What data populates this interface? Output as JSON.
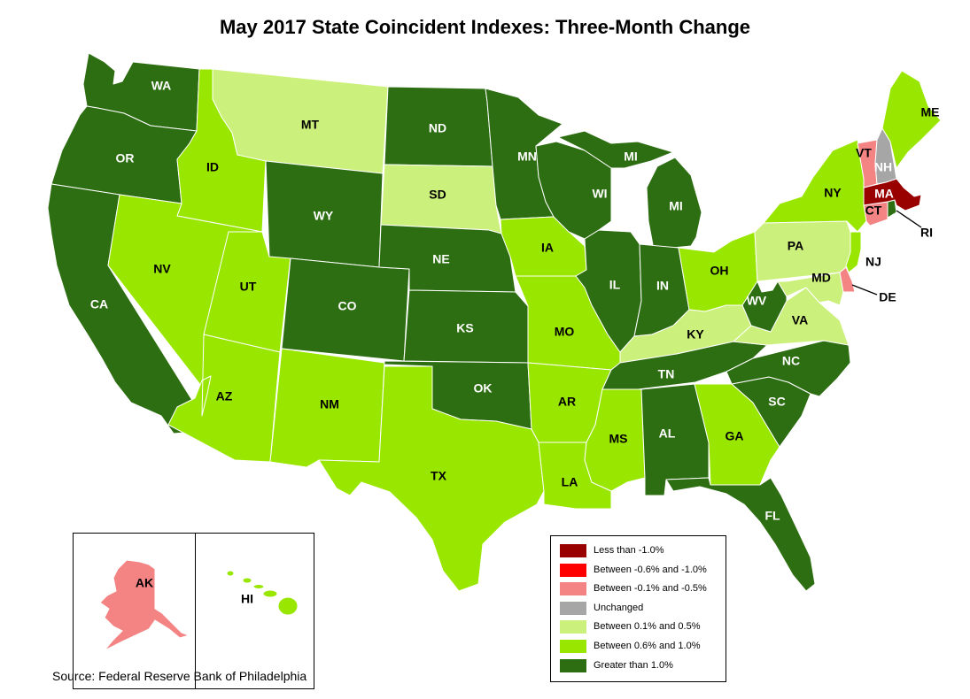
{
  "title": "May 2017 State Coincident Indexes: Three-Month Change",
  "source": "Source: Federal Reserve Bank of Philadelphia",
  "colors": {
    "lt_neg1": "#990000",
    "neg06_10": "#ff0000",
    "neg01_05": "#f48484",
    "unchanged": "#a6a6a6",
    "pos01_05": "#ccf07c",
    "pos06_10": "#99e600",
    "gt_1": "#2d6e12"
  },
  "legend": [
    {
      "label": "Less than -1.0%",
      "color": "#990000"
    },
    {
      "label": "Between -0.6% and -1.0%",
      "color": "#ff0000"
    },
    {
      "label": "Between -0.1% and -0.5%",
      "color": "#f48484"
    },
    {
      "label": "Unchanged",
      "color": "#a6a6a6"
    },
    {
      "label": "Between 0.1% and 0.5%",
      "color": "#ccf07c"
    },
    {
      "label": "Between 0.6% and 1.0%",
      "color": "#99e600"
    },
    {
      "label": "Greater than 1.0%",
      "color": "#2d6e12"
    }
  ],
  "states": {
    "WA": {
      "label": "WA",
      "category": "Greater than 1.0%"
    },
    "OR": {
      "label": "OR",
      "category": "Greater than 1.0%"
    },
    "CA": {
      "label": "CA",
      "category": "Greater than 1.0%"
    },
    "ID": {
      "label": "ID",
      "category": "Between 0.6% and 1.0%"
    },
    "NV": {
      "label": "NV",
      "category": "Between 0.6% and 1.0%"
    },
    "UT": {
      "label": "UT",
      "category": "Between 0.6% and 1.0%"
    },
    "AZ": {
      "label": "AZ",
      "category": "Between 0.6% and 1.0%"
    },
    "MT": {
      "label": "MT",
      "category": "Between 0.1% and 0.5%"
    },
    "WY": {
      "label": "WY",
      "category": "Greater than 1.0%"
    },
    "CO": {
      "label": "CO",
      "category": "Greater than 1.0%"
    },
    "NM": {
      "label": "NM",
      "category": "Between 0.6% and 1.0%"
    },
    "ND": {
      "label": "ND",
      "category": "Greater than 1.0%"
    },
    "SD": {
      "label": "SD",
      "category": "Between 0.1% and 0.5%"
    },
    "NE": {
      "label": "NE",
      "category": "Greater than 1.0%"
    },
    "KS": {
      "label": "KS",
      "category": "Greater than 1.0%"
    },
    "OK": {
      "label": "OK",
      "category": "Greater than 1.0%"
    },
    "TX": {
      "label": "TX",
      "category": "Between 0.6% and 1.0%"
    },
    "MN": {
      "label": "MN",
      "category": "Greater than 1.0%"
    },
    "IA": {
      "label": "IA",
      "category": "Between 0.6% and 1.0%"
    },
    "MO": {
      "label": "MO",
      "category": "Between 0.6% and 1.0%"
    },
    "AR": {
      "label": "AR",
      "category": "Between 0.6% and 1.0%"
    },
    "LA": {
      "label": "LA",
      "category": "Between 0.6% and 1.0%"
    },
    "WI": {
      "label": "WI",
      "category": "Greater than 1.0%"
    },
    "IL": {
      "label": "IL",
      "category": "Greater than 1.0%"
    },
    "MI": {
      "label": "MI",
      "category": "Greater than 1.0%"
    },
    "MI_UP": {
      "label": "MI",
      "category": "Greater than 1.0%"
    },
    "IN": {
      "label": "IN",
      "category": "Greater than 1.0%"
    },
    "OH": {
      "label": "OH",
      "category": "Between 0.6% and 1.0%"
    },
    "KY": {
      "label": "KY",
      "category": "Between 0.1% and 0.5%"
    },
    "TN": {
      "label": "TN",
      "category": "Greater than 1.0%"
    },
    "MS": {
      "label": "MS",
      "category": "Between 0.6% and 1.0%"
    },
    "AL": {
      "label": "AL",
      "category": "Greater than 1.0%"
    },
    "GA": {
      "label": "GA",
      "category": "Between 0.6% and 1.0%"
    },
    "FL": {
      "label": "FL",
      "category": "Greater than 1.0%"
    },
    "SC": {
      "label": "SC",
      "category": "Greater than 1.0%"
    },
    "NC": {
      "label": "NC",
      "category": "Greater than 1.0%"
    },
    "VA": {
      "label": "VA",
      "category": "Between 0.1% and 0.5%"
    },
    "WV": {
      "label": "WV",
      "category": "Greater than 1.0%"
    },
    "PA": {
      "label": "PA",
      "category": "Between 0.1% and 0.5%"
    },
    "NY": {
      "label": "NY",
      "category": "Between 0.6% and 1.0%"
    },
    "NJ": {
      "label": "NJ",
      "category": "Between 0.6% and 1.0%"
    },
    "MD": {
      "label": "MD",
      "category": "Between 0.1% and 0.5%"
    },
    "DE": {
      "label": "DE",
      "category": "Between -0.1% and -0.5%"
    },
    "CT": {
      "label": "CT",
      "category": "Between -0.1% and -0.5%"
    },
    "RI": {
      "label": "RI",
      "category": "Greater than 1.0%"
    },
    "MA": {
      "label": "MA",
      "category": "Less than -1.0%"
    },
    "VT": {
      "label": "VT",
      "category": "Between -0.1% and -0.5%"
    },
    "NH": {
      "label": "NH",
      "category": "Unchanged"
    },
    "ME": {
      "label": "ME",
      "category": "Between 0.6% and 1.0%"
    },
    "AK": {
      "label": "AK",
      "category": "Between -0.1% and -0.5%"
    },
    "HI": {
      "label": "HI",
      "category": "Between 0.6% and 1.0%"
    }
  }
}
